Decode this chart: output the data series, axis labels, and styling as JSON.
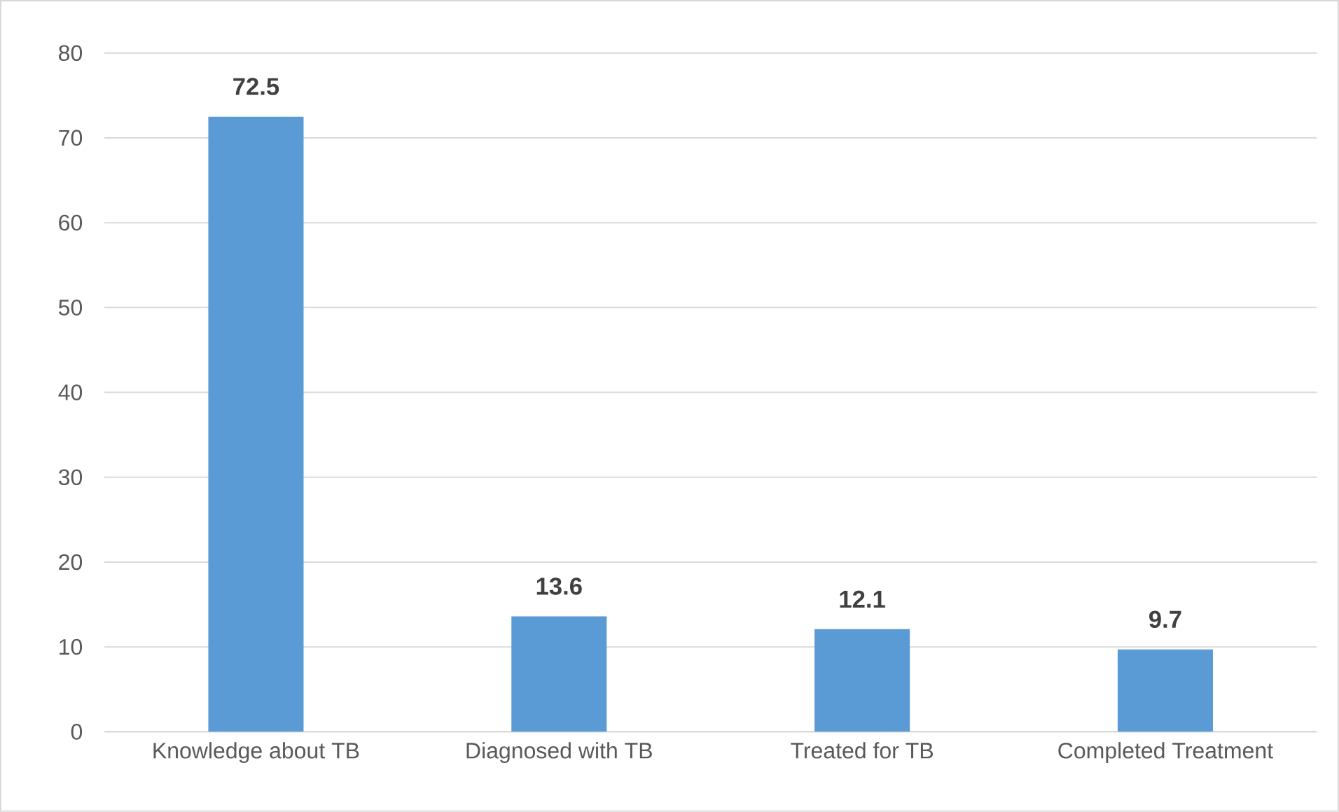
{
  "chart_data": {
    "type": "bar",
    "categories": [
      "Knowledge about TB",
      "Diagnosed with TB",
      "Treated for TB",
      "Completed Treatment"
    ],
    "values": [
      72.5,
      13.6,
      12.1,
      9.7
    ],
    "color": "#5b9bd5",
    "ylim": [
      0,
      80
    ],
    "yticks": [
      0,
      10,
      20,
      30,
      40,
      50,
      60,
      70,
      80
    ],
    "grid": "y",
    "data_labels": true
  }
}
